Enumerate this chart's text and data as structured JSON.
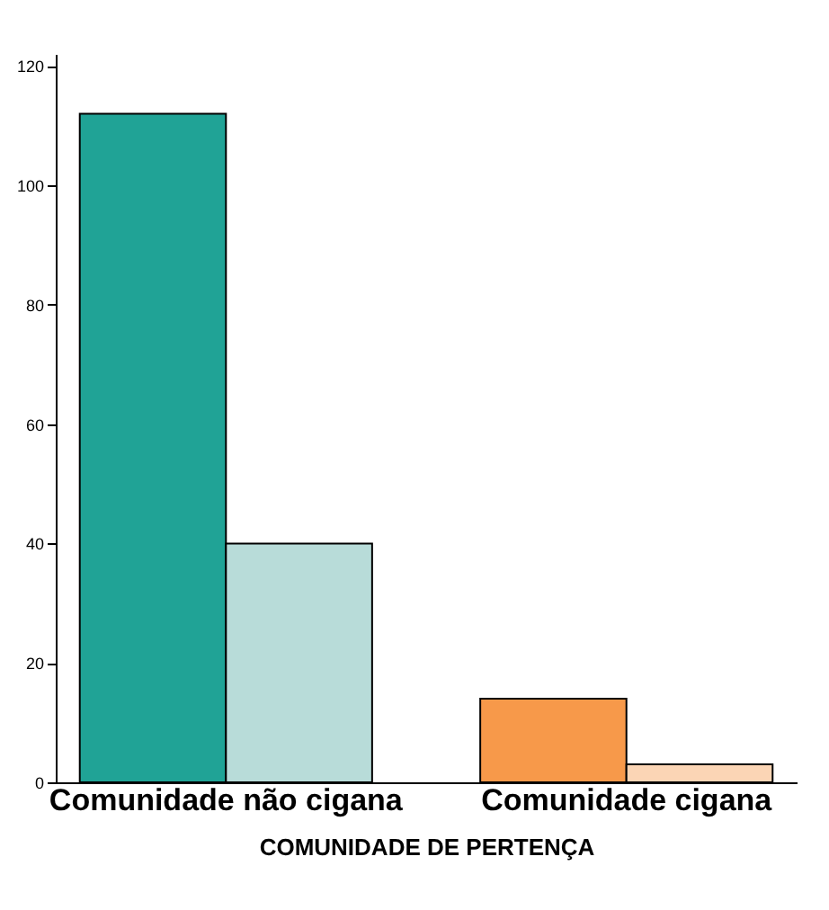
{
  "chart_data": {
    "type": "bar",
    "xlabel": "COMUNIDADE DE PERTENÇA",
    "categories": [
      "Comunidade não cigana",
      "Comunidade cigana"
    ],
    "series": [
      {
        "values": [
          112,
          14
        ],
        "colors": [
          "#20a396",
          "#f7994a"
        ]
      },
      {
        "values": [
          40,
          3
        ],
        "colors": [
          "#b8dcd9",
          "#fbd5b5"
        ]
      }
    ],
    "ylim": [
      0,
      122
    ],
    "yticks": [
      0,
      20,
      40,
      60,
      80,
      100,
      120
    ],
    "grid": false,
    "legend": false
  }
}
